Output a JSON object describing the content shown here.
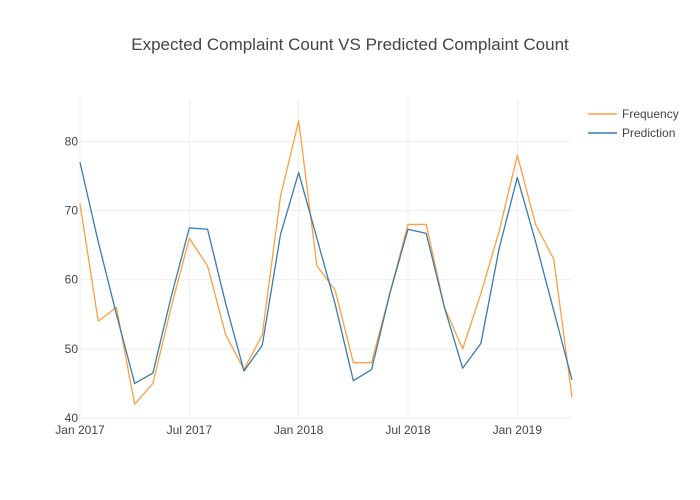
{
  "chart_data": {
    "type": "line",
    "title": "Expected Complaint Count VS Predicted Complaint Count",
    "xlabel": "",
    "ylabel": "",
    "x": [
      "2017-01",
      "2017-02",
      "2017-03",
      "2017-04",
      "2017-05",
      "2017-06",
      "2017-07",
      "2017-08",
      "2017-09",
      "2017-10",
      "2017-11",
      "2017-12",
      "2018-01",
      "2018-02",
      "2018-03",
      "2018-04",
      "2018-05",
      "2018-06",
      "2018-07",
      "2018-08",
      "2018-09",
      "2018-10",
      "2018-11",
      "2018-12",
      "2019-01",
      "2019-02",
      "2019-03",
      "2019-04"
    ],
    "x_tick_labels": [
      "Jan 2017",
      "Jul 2017",
      "Jan 2018",
      "Jul 2018",
      "Jan 2019"
    ],
    "x_tick_dates": [
      "2017-01",
      "2017-07",
      "2018-01",
      "2018-07",
      "2019-01"
    ],
    "y_ticks": [
      40,
      50,
      60,
      70,
      80
    ],
    "ylim": [
      40,
      86
    ],
    "grid": true,
    "legend_position": "top-right",
    "series": [
      {
        "name": "Frequency",
        "color": "#ff9f40",
        "values": [
          71,
          54,
          56,
          42,
          45,
          56,
          66,
          62,
          52,
          47,
          52,
          72,
          83,
          62,
          58.5,
          48,
          48,
          58,
          68,
          68,
          56,
          50,
          58,
          67,
          78,
          68,
          63,
          43
        ]
      },
      {
        "name": "Prediction",
        "color": "#3a7bb0",
        "values": [
          77,
          65.5,
          55,
          45,
          46.5,
          57.5,
          67.5,
          67.3,
          56.5,
          46.8,
          50.5,
          66.5,
          75.5,
          66,
          56.5,
          45.4,
          47,
          58,
          67.3,
          66.7,
          56,
          47.2,
          50.8,
          64.5,
          74.8,
          65.5,
          55.5,
          45.5
        ]
      }
    ]
  }
}
